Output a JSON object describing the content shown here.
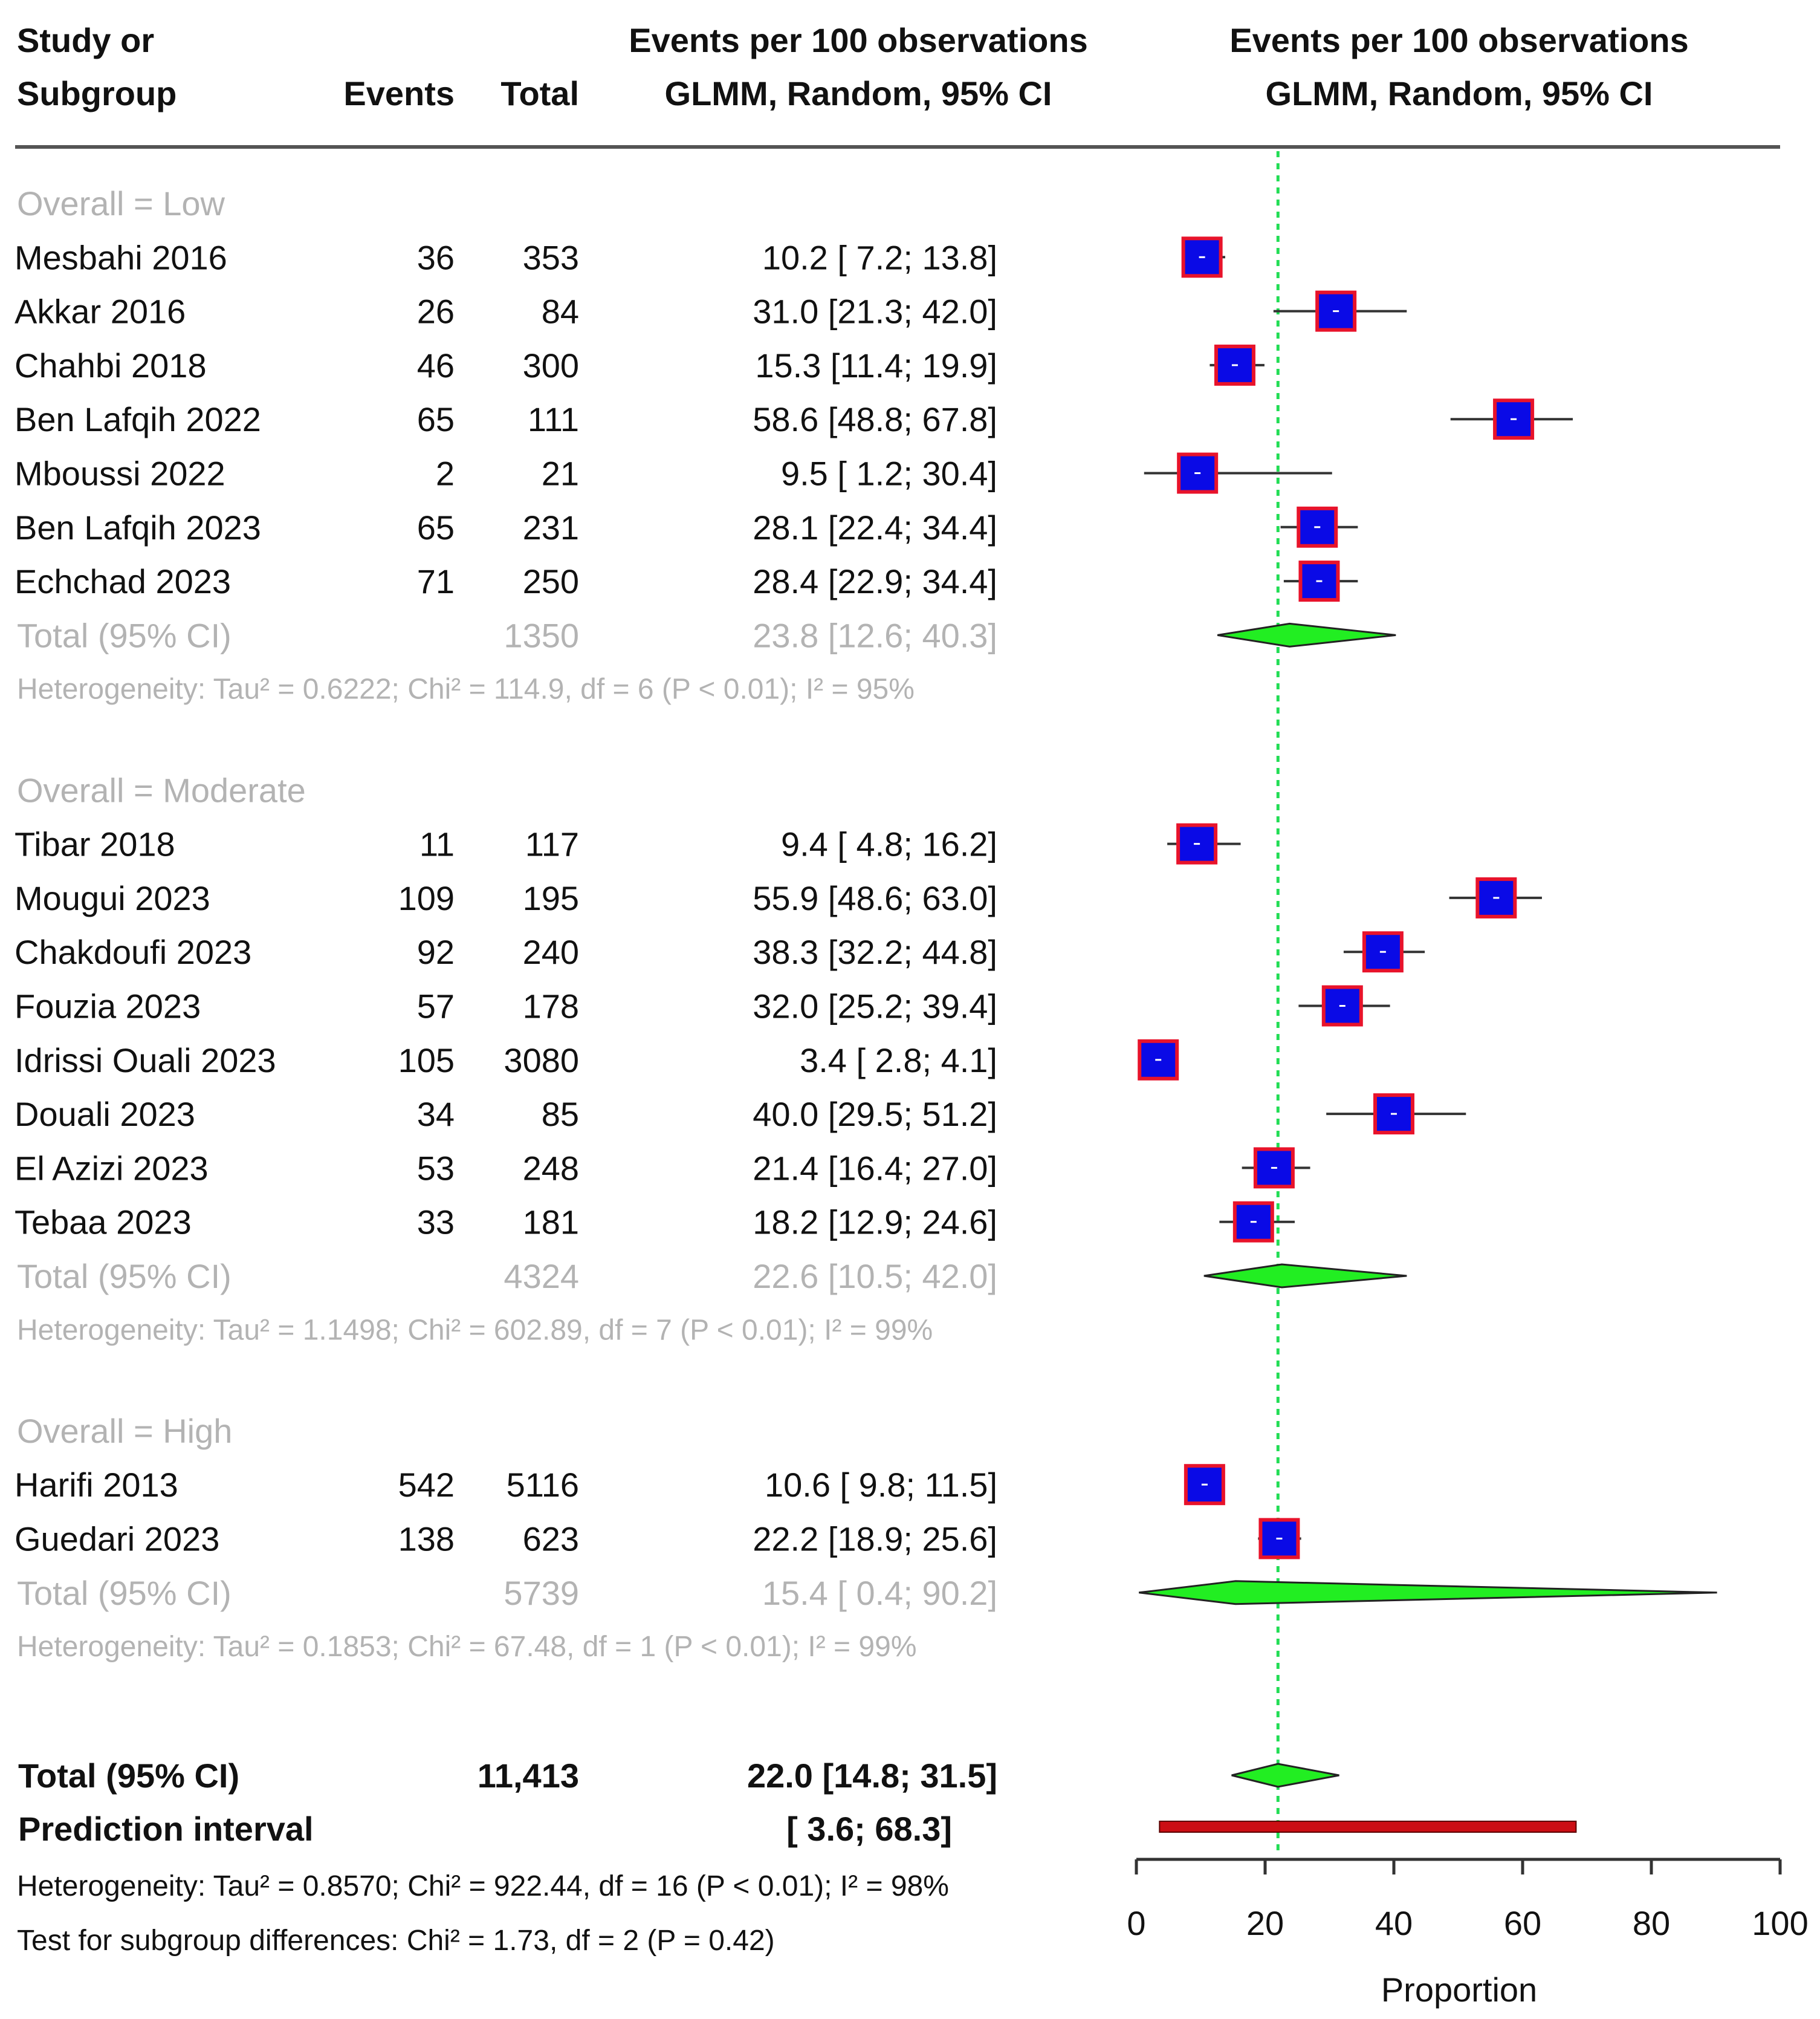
{
  "header": {
    "study_line1": "Study or",
    "study_line2": "Subgroup",
    "events": "Events",
    "total": "Total",
    "ci_line1": "Events per 100 observations",
    "ci_line2": "GLMM, Random, 95% CI",
    "plot_line1": "Events per 100 observations",
    "plot_line2": "GLMM, Random, 95% CI"
  },
  "chart_data": {
    "type": "forest",
    "xlabel": "Proportion",
    "xlim": [
      0,
      100
    ],
    "ticks": [
      "0",
      "20",
      "40",
      "60",
      "80",
      "100"
    ],
    "reference_line": 22.0,
    "subgroups": [
      {
        "label": "Overall = Low",
        "studies": [
          {
            "name": "Mesbahi 2016",
            "events": "36",
            "total": "353",
            "ci_text": "10.2 [ 7.2; 13.8]",
            "est": 10.2,
            "lo": 7.2,
            "hi": 13.8
          },
          {
            "name": "Akkar 2016",
            "events": "26",
            "total": "84",
            "ci_text": "31.0 [21.3; 42.0]",
            "est": 31.0,
            "lo": 21.3,
            "hi": 42.0
          },
          {
            "name": "Chahbi 2018",
            "events": "46",
            "total": "300",
            "ci_text": "15.3 [11.4; 19.9]",
            "est": 15.3,
            "lo": 11.4,
            "hi": 19.9
          },
          {
            "name": "Ben Lafqih 2022",
            "events": "65",
            "total": "111",
            "ci_text": "58.6 [48.8; 67.8]",
            "est": 58.6,
            "lo": 48.8,
            "hi": 67.8
          },
          {
            "name": "Mboussi 2022",
            "events": "2",
            "total": "21",
            "ci_text": "9.5 [ 1.2; 30.4]",
            "est": 9.5,
            "lo": 1.2,
            "hi": 30.4
          },
          {
            "name": "Ben Lafqih 2023",
            "events": "65",
            "total": "231",
            "ci_text": "28.1 [22.4; 34.4]",
            "est": 28.1,
            "lo": 22.4,
            "hi": 34.4
          },
          {
            "name": "Echchad 2023",
            "events": "71",
            "total": "250",
            "ci_text": "28.4 [22.9; 34.4]",
            "est": 28.4,
            "lo": 22.9,
            "hi": 34.4
          }
        ],
        "total_label": "Total (95% CI)",
        "total_n": "1350",
        "total_ci_text": "23.8 [12.6; 40.3]",
        "total_est": 23.8,
        "total_lo": 12.6,
        "total_hi": 40.3,
        "heterogeneity": "Heterogeneity: Tau² = 0.6222; Chi² = 114.9, df = 6 (P < 0.01); I² = 95%"
      },
      {
        "label": "Overall = Moderate",
        "studies": [
          {
            "name": "Tibar 2018",
            "events": "11",
            "total": "117",
            "ci_text": "9.4 [ 4.8; 16.2]",
            "est": 9.4,
            "lo": 4.8,
            "hi": 16.2
          },
          {
            "name": "Mougui 2023",
            "events": "109",
            "total": "195",
            "ci_text": "55.9 [48.6; 63.0]",
            "est": 55.9,
            "lo": 48.6,
            "hi": 63.0
          },
          {
            "name": "Chakdoufi 2023",
            "events": "92",
            "total": "240",
            "ci_text": "38.3 [32.2; 44.8]",
            "est": 38.3,
            "lo": 32.2,
            "hi": 44.8
          },
          {
            "name": "Fouzia 2023",
            "events": "57",
            "total": "178",
            "ci_text": "32.0 [25.2; 39.4]",
            "est": 32.0,
            "lo": 25.2,
            "hi": 39.4
          },
          {
            "name": "Idrissi Ouali 2023",
            "events": "105",
            "total": "3080",
            "ci_text": "3.4 [ 2.8; 4.1]",
            "est": 3.4,
            "lo": 2.8,
            "hi": 4.1
          },
          {
            "name": "Douali 2023",
            "events": "34",
            "total": "85",
            "ci_text": "40.0 [29.5; 51.2]",
            "est": 40.0,
            "lo": 29.5,
            "hi": 51.2
          },
          {
            "name": "El Azizi 2023",
            "events": "53",
            "total": "248",
            "ci_text": "21.4 [16.4; 27.0]",
            "est": 21.4,
            "lo": 16.4,
            "hi": 27.0
          },
          {
            "name": "Tebaa 2023",
            "events": "33",
            "total": "181",
            "ci_text": "18.2 [12.9; 24.6]",
            "est": 18.2,
            "lo": 12.9,
            "hi": 24.6
          }
        ],
        "total_label": "Total (95% CI)",
        "total_n": "4324",
        "total_ci_text": "22.6 [10.5; 42.0]",
        "total_est": 22.6,
        "total_lo": 10.5,
        "total_hi": 42.0,
        "heterogeneity": "Heterogeneity: Tau² = 1.1498; Chi² = 602.89, df = 7 (P < 0.01); I² = 99%"
      },
      {
        "label": "Overall = High",
        "studies": [
          {
            "name": "Harifi 2013",
            "events": "542",
            "total": "5116",
            "ci_text": "10.6 [ 9.8; 11.5]",
            "est": 10.6,
            "lo": 9.8,
            "hi": 11.5
          },
          {
            "name": "Guedari 2023",
            "events": "138",
            "total": "623",
            "ci_text": "22.2 [18.9; 25.6]",
            "est": 22.2,
            "lo": 18.9,
            "hi": 25.6
          }
        ],
        "total_label": "Total (95% CI)",
        "total_n": "5739",
        "total_ci_text": "15.4 [ 0.4; 90.2]",
        "total_est": 15.4,
        "total_lo": 0.4,
        "total_hi": 90.2,
        "heterogeneity": "Heterogeneity: Tau² = 0.1853; Chi² = 67.48, df = 1 (P < 0.01); I² = 99%"
      }
    ],
    "overall": {
      "label": "Total (95% CI)",
      "n": "11,413",
      "ci_text": "22.0 [14.8; 31.5]",
      "est": 22.0,
      "lo": 14.8,
      "hi": 31.5
    },
    "prediction": {
      "label": "Prediction interval",
      "ci_text": "[ 3.6; 68.3]",
      "lo": 3.6,
      "hi": 68.3
    },
    "overall_heterogeneity": "Heterogeneity: Tau² = 0.8570; Chi² = 922.44, df = 16 (P < 0.01); I² = 98%",
    "subgroup_test": "Test for subgroup differences: Chi² = 1.73, df = 2 (P = 0.42)",
    "colors": {
      "square_fill": "#0a0ae6",
      "square_border": "#e8132b",
      "diamond": "#22ee22",
      "prediction_bar": "#cc0e14",
      "reference_line": "#22dd55",
      "subgroup_text": "#b3b3b3"
    }
  }
}
